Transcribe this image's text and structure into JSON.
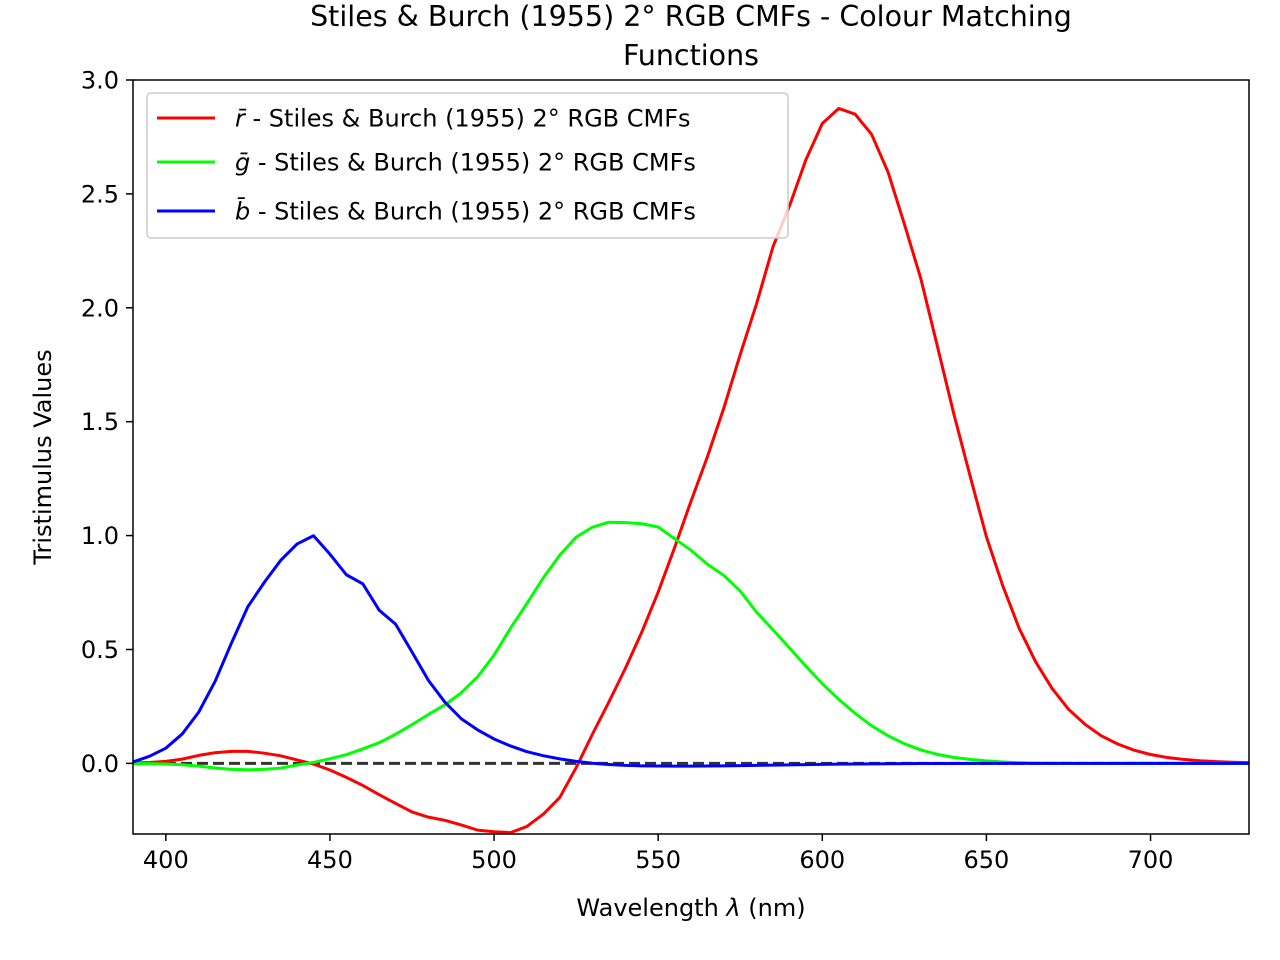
{
  "chart_data": {
    "type": "line",
    "title_lines": [
      "Stiles & Burch (1955) 2$^\\circ$ RGB CMFs - Colour Matching",
      "Functions"
    ],
    "title_display": [
      "Stiles & Burch (1955) 2° RGB CMFs - Colour Matching",
      "Functions"
    ],
    "xlabel_prefix": "Wavelength ",
    "xlabel_symbol": "λ",
    "xlabel_suffix": " (nm)",
    "ylabel": "Tristimulus Values",
    "xlim": [
      390,
      730
    ],
    "ylim": [
      -0.31,
      3.0
    ],
    "xticks": [
      400,
      450,
      500,
      550,
      600,
      650,
      700
    ],
    "xtick_labels": [
      "400",
      "450",
      "500",
      "550",
      "600",
      "650",
      "700"
    ],
    "yticks": [
      0.0,
      0.5,
      1.0,
      1.5,
      2.0,
      2.5,
      3.0
    ],
    "ytick_labels": [
      "0.0",
      "0.5",
      "1.0",
      "1.5",
      "2.0",
      "2.5",
      "3.0"
    ],
    "grid": false,
    "legend_position": "top-left",
    "zero_line": {
      "y": 0,
      "style": "dashed",
      "color": "#333333"
    },
    "x": [
      390,
      395,
      400,
      405,
      410,
      415,
      420,
      425,
      430,
      435,
      440,
      445,
      450,
      455,
      460,
      465,
      470,
      475,
      480,
      485,
      490,
      495,
      500,
      505,
      510,
      515,
      520,
      525,
      530,
      535,
      540,
      545,
      550,
      555,
      560,
      565,
      570,
      575,
      580,
      585,
      590,
      595,
      600,
      605,
      610,
      615,
      620,
      625,
      630,
      635,
      640,
      645,
      650,
      655,
      660,
      665,
      670,
      675,
      680,
      685,
      690,
      695,
      700,
      705,
      710,
      715,
      720,
      725,
      730
    ],
    "series": [
      {
        "symbol": "r̄",
        "label_rest": " - Stiles & Burch (1955) 2° RGB CMFs",
        "color": "#ff0000",
        "values": [
          0.0015,
          0.0038,
          0.0089,
          0.0188,
          0.035,
          0.0469,
          0.0528,
          0.0529,
          0.0448,
          0.0332,
          0.0152,
          -0.0032,
          -0.029,
          -0.0615,
          -0.0968,
          -0.1375,
          -0.1759,
          -0.213,
          -0.236,
          -0.25,
          -0.27,
          -0.293,
          -0.3,
          -0.304,
          -0.277,
          -0.223,
          -0.15,
          -0.019,
          0.129,
          0.27,
          0.417,
          0.576,
          0.752,
          0.947,
          1.151,
          1.346,
          1.56,
          1.795,
          2.019,
          2.269,
          2.447,
          2.65,
          2.809,
          2.875,
          2.85,
          2.762,
          2.597,
          2.368,
          2.129,
          1.835,
          1.538,
          1.263,
          0.995,
          0.779,
          0.592,
          0.446,
          0.329,
          0.238,
          0.172,
          0.121,
          0.085,
          0.058,
          0.039,
          0.026,
          0.0177,
          0.0118,
          0.0077,
          0.0051,
          0.0034
        ]
      },
      {
        "symbol": "ḡ",
        "label_rest": " - Stiles & Burch (1955) 2° RGB CMFs",
        "color": "#00ff00",
        "values": [
          -0.0004,
          -0.001,
          -0.0025,
          -0.0059,
          -0.0119,
          -0.0201,
          -0.0261,
          -0.028,
          -0.0264,
          -0.0208,
          -0.0072,
          0.0043,
          0.0208,
          0.0383,
          0.0633,
          0.0908,
          0.1279,
          0.1701,
          0.2147,
          0.2569,
          0.3096,
          0.3803,
          0.4749,
          0.5936,
          0.7015,
          0.8146,
          0.9138,
          0.9933,
          1.0371,
          1.0588,
          1.0568,
          1.0519,
          1.0378,
          0.9865,
          0.9358,
          0.8741,
          0.8251,
          0.7563,
          0.6635,
          0.5862,
          0.5072,
          0.4271,
          0.35,
          0.2812,
          0.2199,
          0.1657,
          0.1216,
          0.0864,
          0.0591,
          0.0397,
          0.0265,
          0.0174,
          0.0108,
          0.0061,
          0.0029,
          0.0008,
          0.0,
          -0.0003,
          -0.0004,
          -0.0004,
          -0.0003,
          -0.0002,
          -0.0001,
          -0.0001,
          -0.0001,
          0.0,
          0.0,
          0.0,
          0.0
        ]
      },
      {
        "symbol": "b̄",
        "label_rest": " - Stiles & Burch (1955) 2° RGB CMFs",
        "color": "#0000ff",
        "values": [
          0.0062,
          0.0309,
          0.0667,
          0.1293,
          0.2245,
          0.3596,
          0.5281,
          0.688,
          0.7945,
          0.8914,
          0.9633,
          0.9992,
          0.9184,
          0.8281,
          0.7885,
          0.6725,
          0.6114,
          0.4891,
          0.3643,
          0.2693,
          0.1959,
          0.1469,
          0.1072,
          0.0764,
          0.0515,
          0.0337,
          0.0199,
          0.009,
          0.0007,
          -0.0047,
          -0.0085,
          -0.0107,
          -0.0117,
          -0.0121,
          -0.012,
          -0.0115,
          -0.0107,
          -0.0097,
          -0.0086,
          -0.0075,
          -0.0063,
          -0.0052,
          -0.0042,
          -0.0033,
          -0.0025,
          -0.0019,
          -0.0014,
          -0.001,
          -0.0007,
          -0.0005,
          -0.0003,
          -0.0002,
          -0.0001,
          -0.0001,
          0.0,
          0.0,
          0.0,
          0.0,
          0.0,
          0.0,
          0.0,
          0.0,
          0.0,
          0.0,
          0.0,
          0.0,
          0.0,
          0.0,
          0.0
        ]
      }
    ]
  }
}
